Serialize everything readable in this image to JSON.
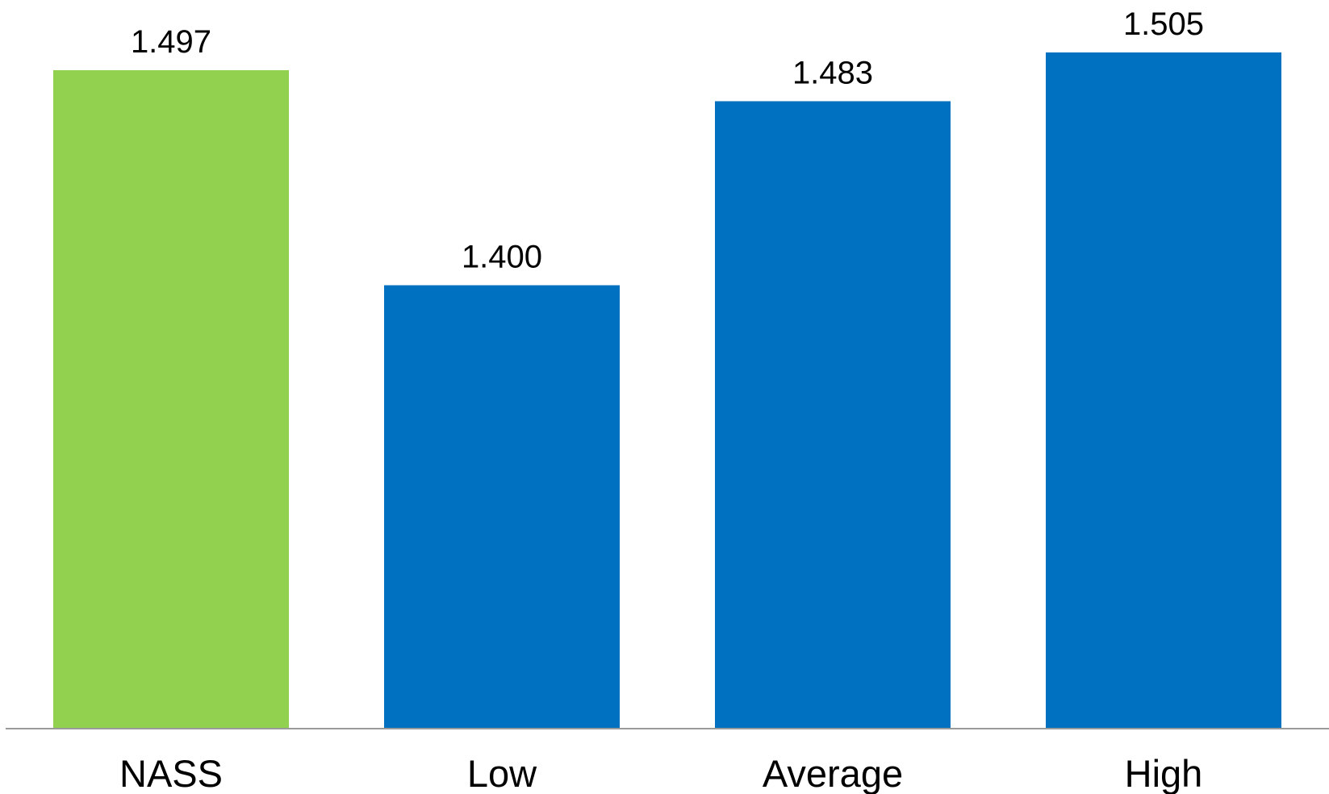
{
  "chart_data": {
    "type": "bar",
    "categories": [
      "NASS",
      "Low",
      "Average",
      "High"
    ],
    "values": [
      1.497,
      1.4,
      1.483,
      1.505
    ],
    "value_labels": [
      "1.497",
      "1.400",
      "1.483",
      "1.505"
    ],
    "colors": [
      "#92D050",
      "#0070C0",
      "#0070C0",
      "#0070C0"
    ],
    "title": "",
    "xlabel": "",
    "ylabel": "",
    "ylim": [
      1.2,
      1.505
    ],
    "grid": false,
    "legend": "none"
  }
}
